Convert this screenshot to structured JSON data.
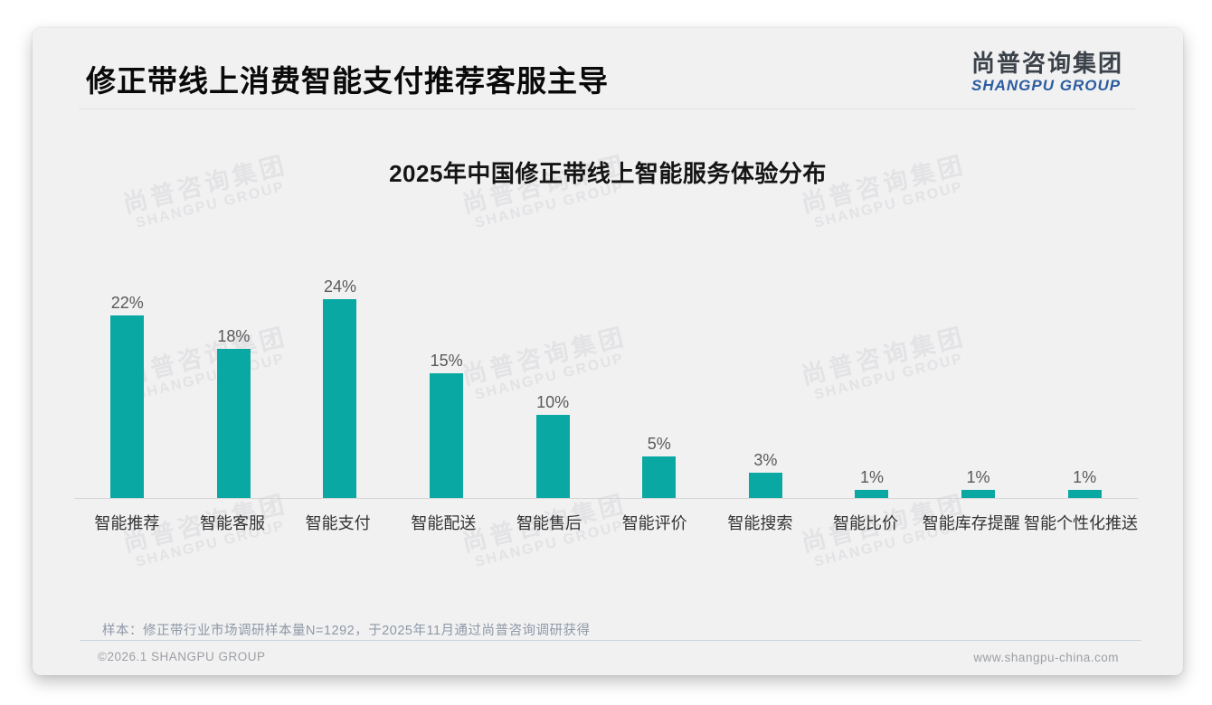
{
  "page": {
    "title": "修正带线上消费智能支付推荐客服主导",
    "logo": {
      "cn": "尚普咨询集团",
      "en": "SHANGPU GROUP"
    },
    "watermark": {
      "cn": "尚普咨询集团",
      "en": "SHANGPU GROUP"
    },
    "footnote": "样本：修正带行业市场调研样本量N=1292，于2025年11月通过尚普咨询调研获得",
    "copyright": "©2026.1 SHANGPU GROUP",
    "website": "www.shangpu-china.com"
  },
  "colors": {
    "bar": "#09a8a3",
    "card_bg": "#f1f1f2",
    "logo_blue": "#2b5da0",
    "watermark": "#e3e3e5"
  },
  "chart_data": {
    "type": "bar",
    "title": "2025年中国修正带线上智能服务体验分布",
    "categories": [
      "智能推荐",
      "智能客服",
      "智能支付",
      "智能配送",
      "智能售后",
      "智能评价",
      "智能搜索",
      "智能比价",
      "智能库存提醒",
      "智能个性化推送"
    ],
    "values": [
      22,
      18,
      24,
      15,
      10,
      5,
      3,
      1,
      1,
      1
    ],
    "value_labels": [
      "22%",
      "18%",
      "24%",
      "15%",
      "10%",
      "5%",
      "3%",
      "1%",
      "1%",
      "1%"
    ],
    "unit": "%",
    "xlabel": "",
    "ylabel": "",
    "ylim": [
      0,
      26
    ],
    "y_axis_visible": false,
    "grid": false,
    "legend": false,
    "bar_color": "#09a8a3"
  }
}
